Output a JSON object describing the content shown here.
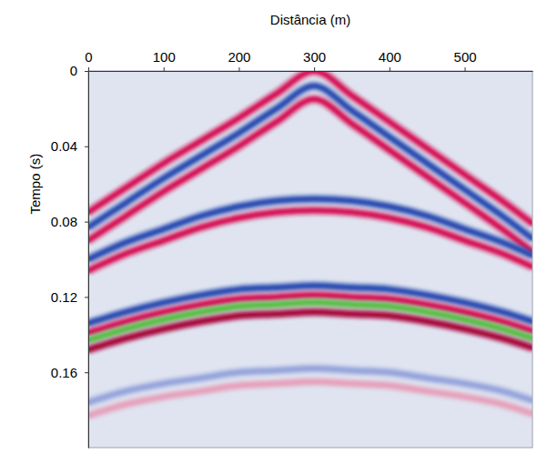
{
  "chart_data": {
    "type": "line",
    "x_label": "Distância (m)",
    "y_label": "Tempo (s)",
    "x": [
      0,
      50,
      100,
      150,
      200,
      250,
      300,
      350,
      400,
      450,
      500,
      550,
      590
    ],
    "series": [
      {
        "color": "#e6a3bd",
        "values": [
          0.183,
          0.177,
          0.173,
          0.17,
          0.167,
          0.166,
          0.165,
          0.166,
          0.167,
          0.17,
          0.173,
          0.177,
          0.182
        ]
      },
      {
        "color": "#97a6dc",
        "values": [
          0.176,
          0.17,
          0.166,
          0.163,
          0.16,
          0.159,
          0.158,
          0.159,
          0.16,
          0.163,
          0.166,
          0.17,
          0.175
        ]
      },
      {
        "color": "#d6175a",
        "values": [
          0.075,
          0.062,
          0.049,
          0.037,
          0.025,
          0.012,
          0.0,
          0.013,
          0.027,
          0.041,
          0.055,
          0.069,
          0.081
        ]
      },
      {
        "color": "#2f4fb3",
        "values": [
          0.083,
          0.07,
          0.057,
          0.045,
          0.033,
          0.02,
          0.008,
          0.021,
          0.035,
          0.049,
          0.063,
          0.077,
          0.089
        ]
      },
      {
        "color": "#d6175a",
        "values": [
          0.09,
          0.077,
          0.064,
          0.052,
          0.04,
          0.027,
          0.015,
          0.028,
          0.042,
          0.056,
          0.07,
          0.084,
          0.096
        ]
      },
      {
        "color": "#2f4fb3",
        "values": [
          0.1,
          0.091,
          0.084,
          0.077,
          0.072,
          0.069,
          0.068,
          0.069,
          0.072,
          0.077,
          0.084,
          0.091,
          0.098
        ]
      },
      {
        "color": "#d6175a",
        "values": [
          0.106,
          0.097,
          0.09,
          0.083,
          0.078,
          0.075,
          0.074,
          0.075,
          0.078,
          0.083,
          0.09,
          0.097,
          0.104
        ]
      },
      {
        "color": "#2f4fb3",
        "values": [
          0.134,
          0.128,
          0.123,
          0.119,
          0.116,
          0.115,
          0.114,
          0.115,
          0.116,
          0.119,
          0.123,
          0.128,
          0.133
        ]
      },
      {
        "color": "#d6175a",
        "values": [
          0.139,
          0.133,
          0.128,
          0.124,
          0.121,
          0.12,
          0.119,
          0.12,
          0.121,
          0.124,
          0.128,
          0.133,
          0.138
        ]
      },
      {
        "color": "#5cbf4a",
        "values": [
          0.143,
          0.137,
          0.132,
          0.128,
          0.125,
          0.124,
          0.123,
          0.124,
          0.125,
          0.128,
          0.132,
          0.137,
          0.142
        ]
      },
      {
        "color": "#a8083e",
        "values": [
          0.148,
          0.142,
          0.137,
          0.133,
          0.13,
          0.129,
          0.128,
          0.129,
          0.13,
          0.133,
          0.137,
          0.142,
          0.147
        ]
      }
    ],
    "xlim": [
      0,
      590
    ],
    "ylim": [
      0,
      0.2
    ],
    "xticks": [
      0,
      100,
      200,
      300,
      400,
      500
    ],
    "yticks": [
      0,
      0.04,
      0.08,
      0.12,
      0.16
    ],
    "grid": false
  }
}
